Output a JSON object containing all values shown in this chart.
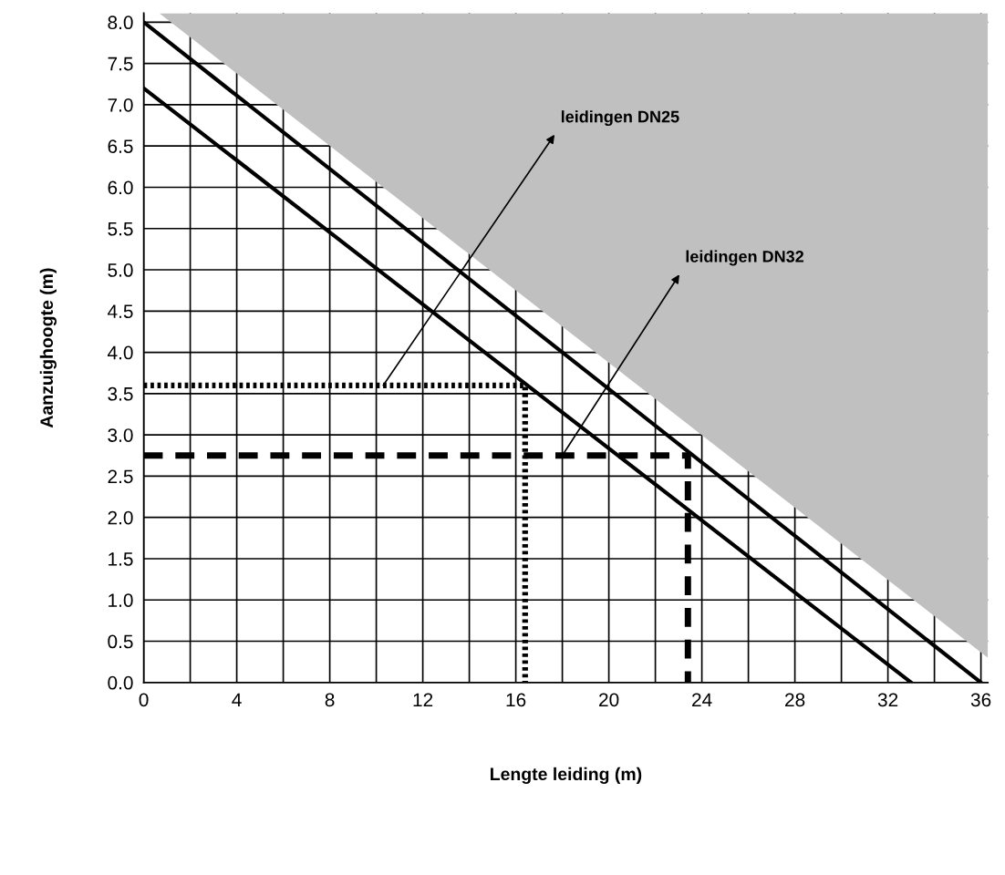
{
  "chart_data": {
    "type": "line",
    "xlabel": "Lengte leiding (m)",
    "ylabel": "Aanzuighoogte (m)",
    "xlim": [
      0,
      36.3
    ],
    "ylim": [
      0,
      8.11
    ],
    "xticks": [
      0,
      4,
      8,
      12,
      16,
      20,
      24,
      28,
      32,
      36
    ],
    "yticks": [
      {
        "value": 0,
        "label": "0.0"
      },
      {
        "value": 0.5,
        "label": "0.5"
      },
      {
        "value": 1,
        "label": "1.0"
      },
      {
        "value": 1.5,
        "label": "1.5"
      },
      {
        "value": 2,
        "label": "2.0"
      },
      {
        "value": 2.5,
        "label": "2.5"
      },
      {
        "value": 3,
        "label": "3.0"
      },
      {
        "value": 3.5,
        "label": "3.5"
      },
      {
        "value": 4,
        "label": "4.0"
      },
      {
        "value": 4.5,
        "label": "4.5"
      },
      {
        "value": 5,
        "label": "5.0"
      },
      {
        "value": 5.5,
        "label": "5.5"
      },
      {
        "value": 6,
        "label": "6.0"
      },
      {
        "value": 6.5,
        "label": "6.5"
      },
      {
        "value": 7,
        "label": "7.0"
      },
      {
        "value": 7.5,
        "label": "7.5"
      },
      {
        "value": 8,
        "label": "8.0"
      }
    ],
    "grid": true,
    "series": [
      {
        "type": "area",
        "color": "#c0c0c0",
        "x": [
          0.67,
          36.3
        ],
        "values": [
          8.11,
          0.3
        ]
      },
      {
        "color": "#000000",
        "line_style": "solid",
        "x": [
          0,
          33
        ],
        "values": [
          7.2,
          0
        ]
      },
      {
        "color": "#000000",
        "line_style": "solid",
        "x": [
          0,
          36
        ],
        "values": [
          8,
          0
        ]
      },
      {
        "color": "#000000",
        "line_style": "dotted",
        "x": [
          0,
          16.4,
          16.4
        ],
        "values": [
          3.6,
          3.6,
          0
        ]
      },
      {
        "color": "#000000",
        "line_style": "dashed",
        "x": [
          0,
          23.4,
          23.4
        ],
        "values": [
          2.75,
          2.75,
          0
        ]
      }
    ],
    "annotations": [
      {
        "text": "leidingen DN25",
        "x": 10.3,
        "y": 3.6
      },
      {
        "text": "leidingen DN32",
        "x": 18,
        "y": 2.75
      }
    ]
  }
}
